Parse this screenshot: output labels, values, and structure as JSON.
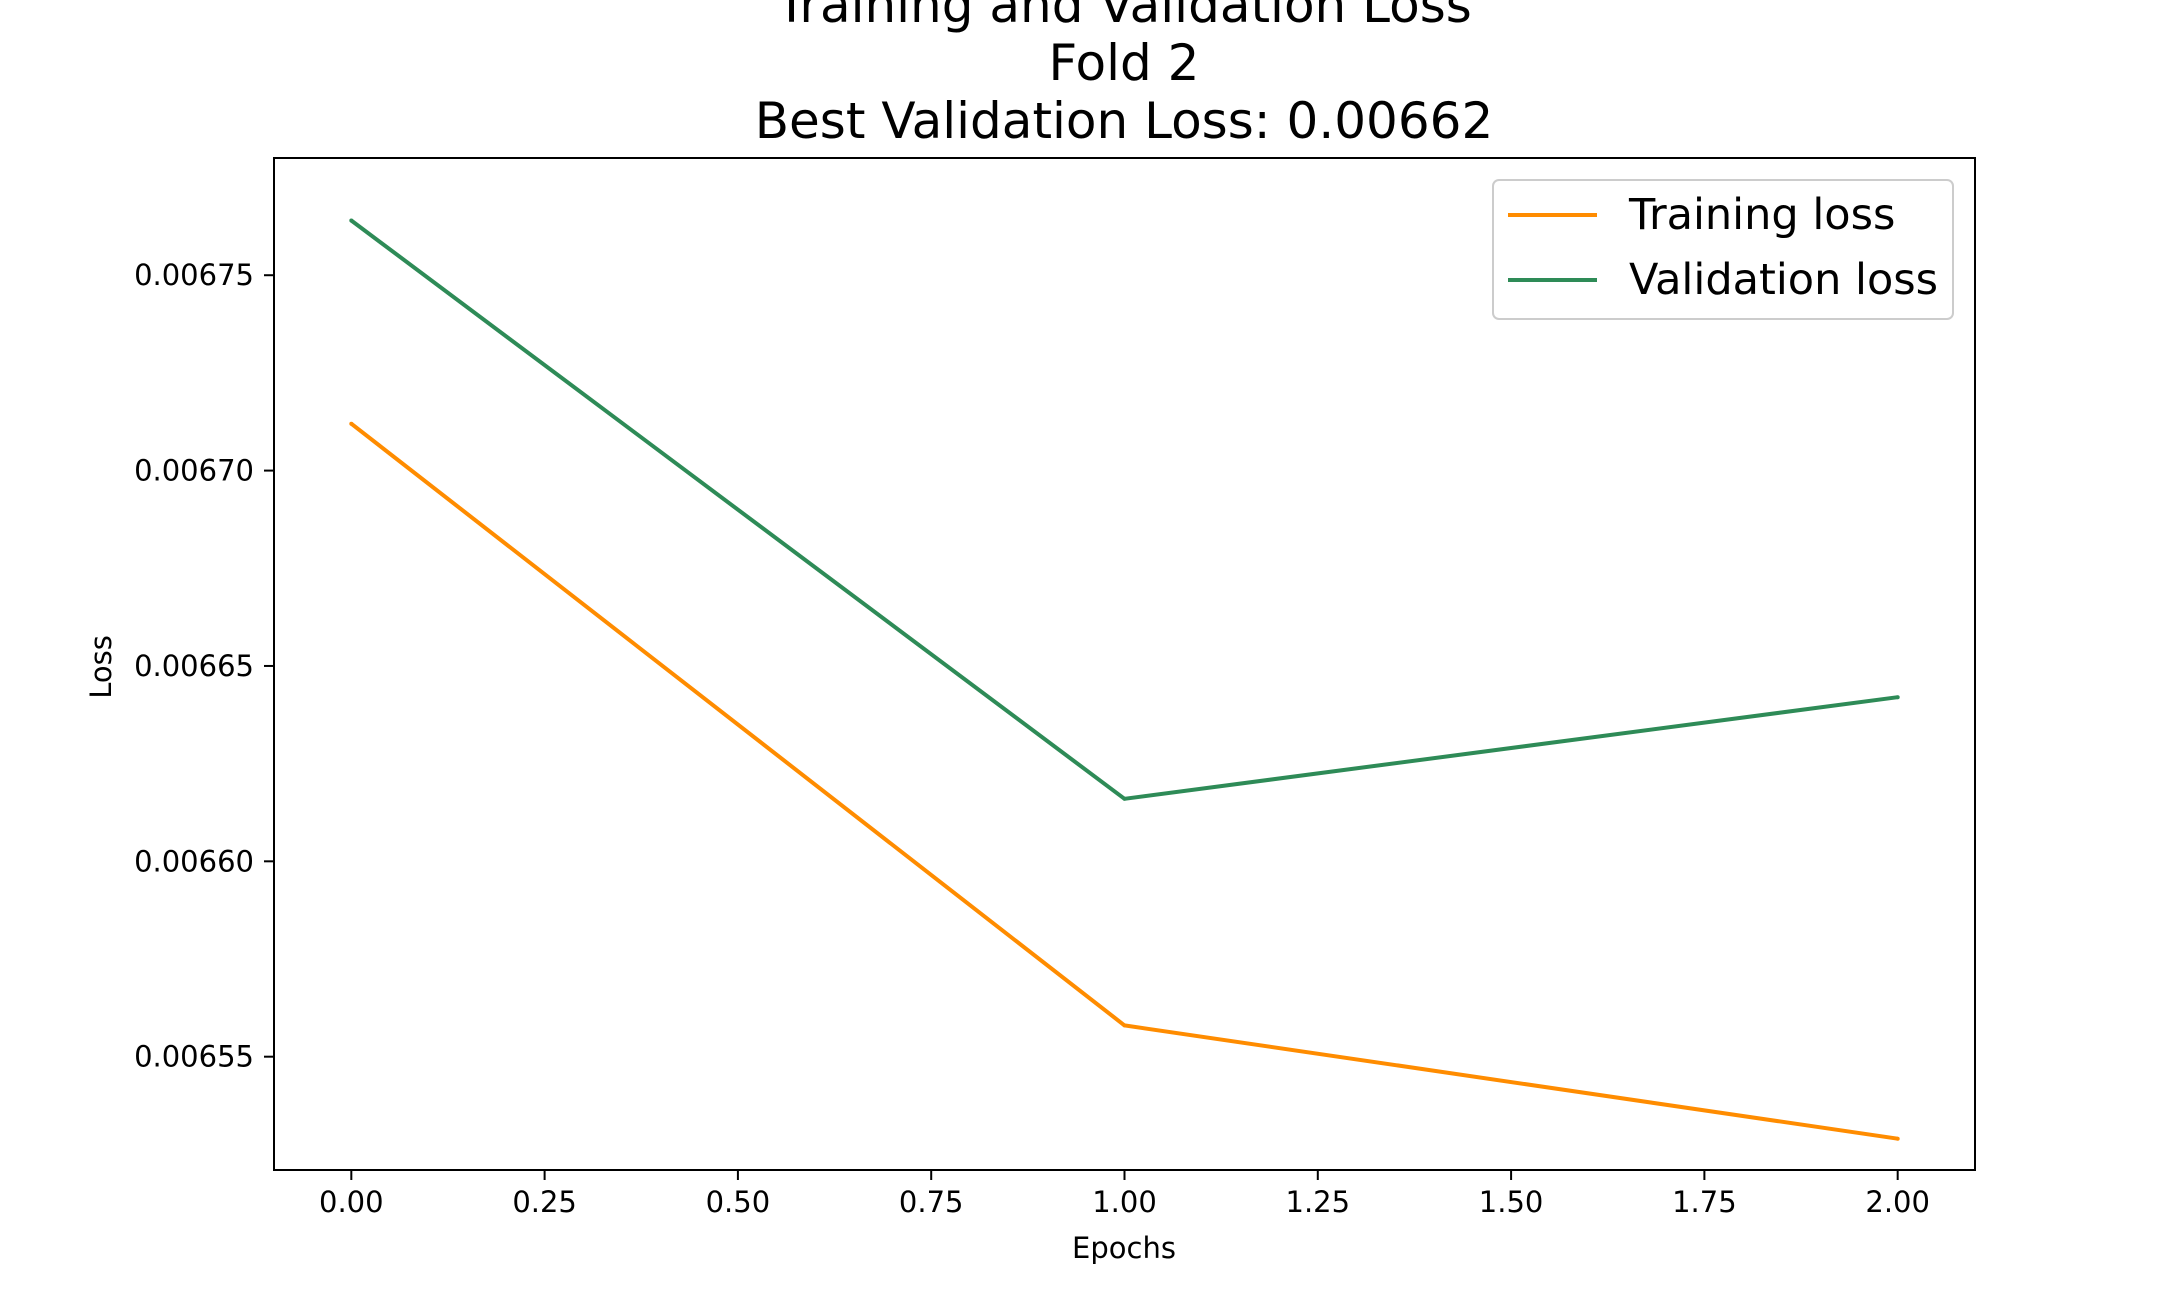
{
  "chart_data": {
    "type": "line",
    "title_lines": [
      "Training and Validation Loss",
      "Fold 2",
      "Best Validation Loss: 0.00662"
    ],
    "xlabel": "Epochs",
    "ylabel": "Loss",
    "xlim": [
      -0.1,
      2.1
    ],
    "ylim": [
      0.006521,
      0.00678
    ],
    "xticks": [
      0.0,
      0.25,
      0.5,
      0.75,
      1.0,
      1.25,
      1.5,
      1.75,
      2.0
    ],
    "xtick_labels": [
      "0.00",
      "0.25",
      "0.50",
      "0.75",
      "1.00",
      "1.25",
      "1.50",
      "1.75",
      "2.00"
    ],
    "yticks": [
      0.00655,
      0.0066,
      0.00665,
      0.0067,
      0.00675
    ],
    "ytick_labels": [
      "0.00655",
      "0.00660",
      "0.00665",
      "0.00670",
      "0.00675"
    ],
    "x": [
      0,
      1,
      2
    ],
    "series": [
      {
        "name": "Training loss",
        "color": "#ff8c00",
        "values": [
          0.006712,
          0.006558,
          0.006529
        ]
      },
      {
        "name": "Validation loss",
        "color": "#2e8b57",
        "values": [
          0.006764,
          0.006616,
          0.006642
        ]
      }
    ],
    "legend_position": "top-right",
    "grid": false
  }
}
